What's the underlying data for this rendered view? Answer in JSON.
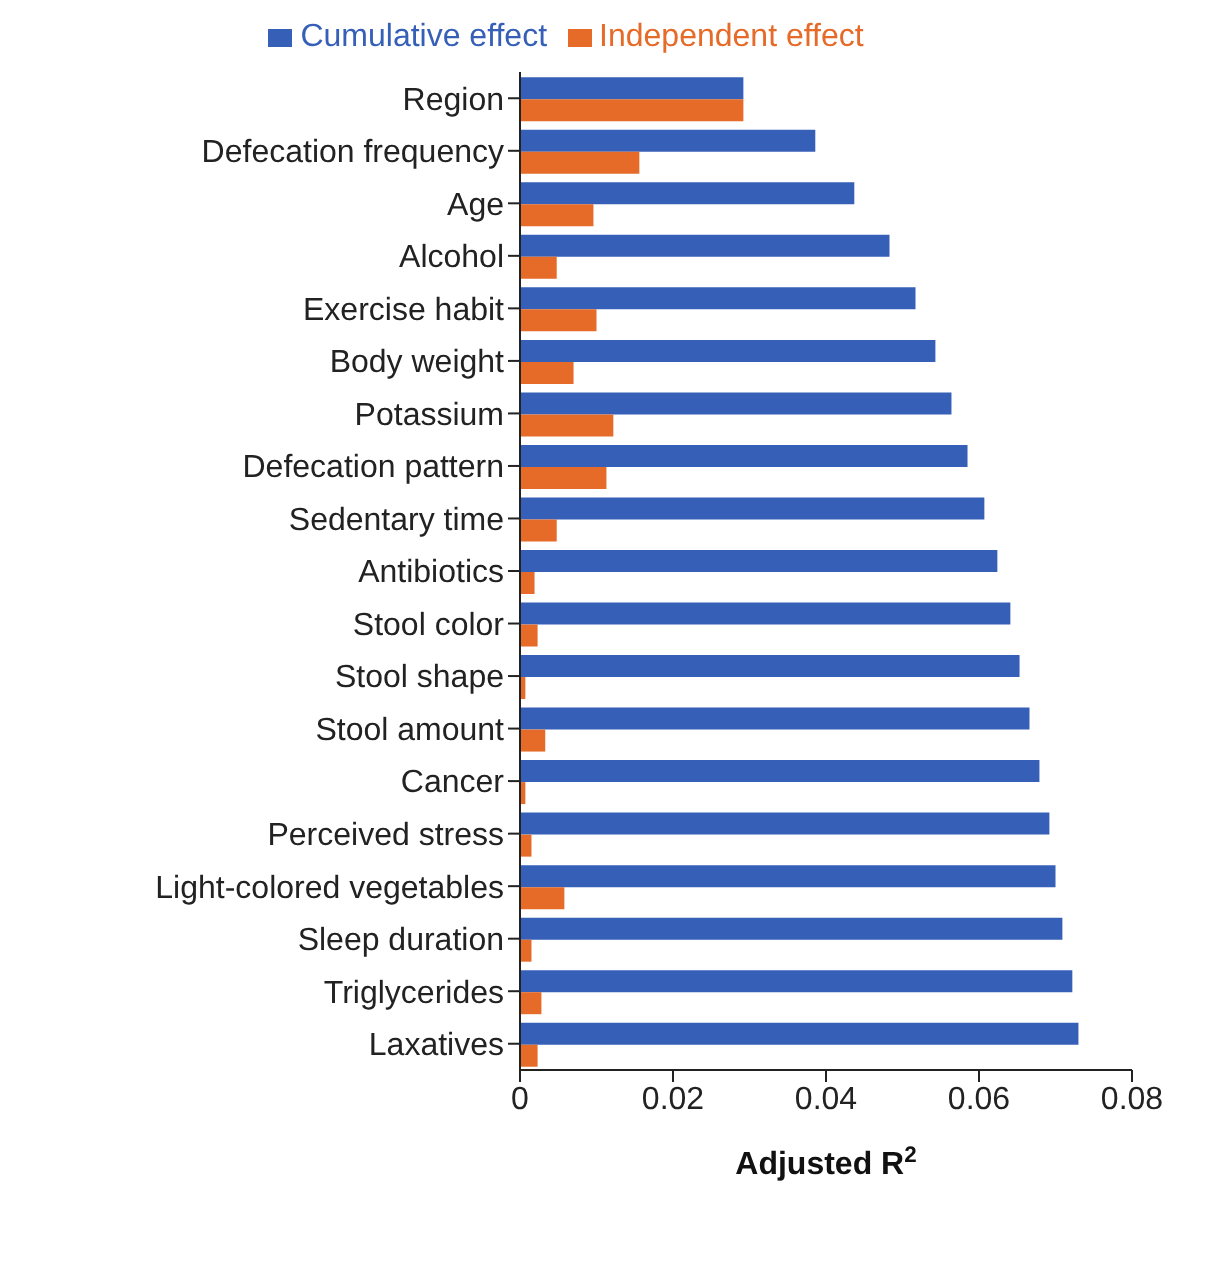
{
  "chart_data": {
    "type": "bar",
    "orientation": "horizontal",
    "xlabel": "Adjusted R$^{2}$",
    "categories": [
      "Region",
      "Defecation frequency",
      "Age",
      "Alcohol",
      "Exercise habit",
      "Body weight",
      "Potassium",
      "Defecation pattern",
      "Sedentary time",
      "Antibiotics",
      "Stool color",
      "Stool shape",
      "Stool amount",
      "Cancer",
      "Perceived stress",
      "Light-colored vegetables",
      "Sleep duration",
      "Triglycerides",
      "Laxatives"
    ],
    "series": [
      {
        "name": "Cumulative effect",
        "color": "#365fb7",
        "values": [
          0.0292,
          0.0386,
          0.0437,
          0.0483,
          0.0517,
          0.0543,
          0.0564,
          0.0585,
          0.0607,
          0.0624,
          0.0641,
          0.0653,
          0.0666,
          0.0679,
          0.0692,
          0.07,
          0.0709,
          0.0722,
          0.073
        ]
      },
      {
        "name": "Independent effect",
        "color": "#e66a28",
        "values": [
          0.0292,
          0.0156,
          0.0096,
          0.0048,
          0.01,
          0.007,
          0.0122,
          0.0113,
          0.0048,
          0.0019,
          0.0023,
          0.0007,
          0.0033,
          0.0007,
          0.0015,
          0.0058,
          0.0015,
          0.0028,
          0.0023
        ]
      }
    ],
    "xlim": [
      0,
      0.08
    ],
    "xticks": [
      0,
      0.02,
      0.04,
      0.06,
      0.08
    ],
    "legend": "top",
    "grid": false
  }
}
